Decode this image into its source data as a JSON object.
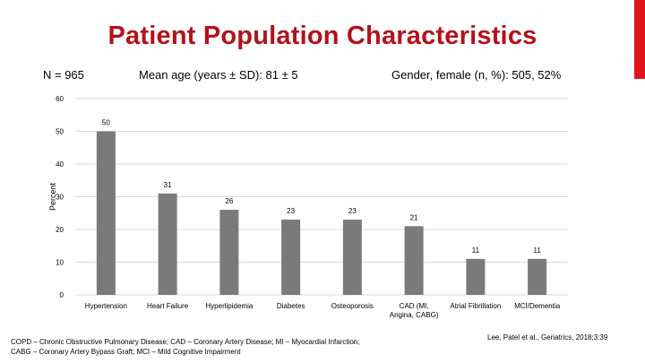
{
  "slide": {
    "title": "Patient Population Characteristics",
    "stats": {
      "n": "N = 965",
      "age": "Mean age (years ±  SD): 81 ± 5",
      "gender": "Gender, female (n, %): 505, 52%"
    },
    "footnote": [
      "COPD – Chronic Obstructive Pulmonary Disease; CAD – Coronary Artery Disease; MI – Myocardial Infarction;",
      "CABG – Coronary Artery Bypass Graft; MCI – Mild Cognitive Impairment"
    ],
    "citation": "Lee, Patel et al., Geriatrics, 2018;3:39"
  },
  "colors": {
    "title": "#b3121c",
    "accent": "#e0141b",
    "bar": "#7a7a7a",
    "grid": "#d9d9d9"
  },
  "chart_data": {
    "type": "bar",
    "title": "",
    "xlabel": "",
    "ylabel": "Percent",
    "ylim": [
      0,
      60
    ],
    "yticks": [
      0,
      10,
      20,
      30,
      40,
      50,
      60
    ],
    "grid": true,
    "categories": [
      [
        "Hypertension"
      ],
      [
        "Heart Failure"
      ],
      [
        "Hyperlipidemia"
      ],
      [
        "Diabetes"
      ],
      [
        "Osteoporosis"
      ],
      [
        "CAD (MI,",
        "Angina, CABG)"
      ],
      [
        "Atrial Fibrillation"
      ],
      [
        "MCI/Dementia"
      ]
    ],
    "values": [
      50,
      31,
      26,
      23,
      23,
      21,
      11,
      11
    ]
  }
}
